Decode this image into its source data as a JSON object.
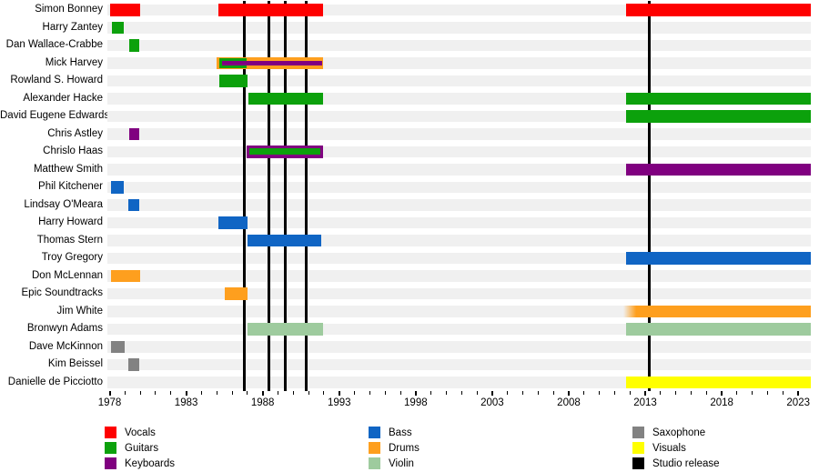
{
  "chart_data": {
    "type": "timeline",
    "description": "Band member timeline (gantt-style) with studio release markers",
    "axis": {
      "start_year": 1977.85,
      "end_year": 2023.82,
      "major_ticks": [
        1978,
        1983,
        1988,
        1993,
        1998,
        2003,
        2008,
        2013,
        2018,
        2023
      ],
      "minor_tick_step": 1,
      "minor_tick_first": 1978,
      "minor_tick_last": 2023,
      "grid": "row-stripes"
    },
    "rows": [
      {
        "name": "Simon Bonney",
        "bars": [
          {
            "role": "vocals",
            "from": 1978.0,
            "to": 1980.0
          },
          {
            "role": "vocals",
            "from": 1985.08,
            "to": 1991.95
          },
          {
            "role": "vocals",
            "from": 2011.75,
            "to": 2023.8
          }
        ]
      },
      {
        "name": "Harry Zantey",
        "bars": [
          {
            "role": "guitars",
            "from": 1978.13,
            "to": 1978.92
          }
        ]
      },
      {
        "name": "Dan Wallace-Crabbe",
        "bars": [
          {
            "role": "guitars",
            "from": 1979.26,
            "to": 1979.95
          }
        ]
      },
      {
        "name": "Mick Harvey",
        "bars": [
          {
            "role": "drums",
            "from": 1985.0,
            "to": 1991.95,
            "h": 13.5
          },
          {
            "role": "guitars",
            "from": 1985.15,
            "to": 1986.95,
            "h": 11
          },
          {
            "role": "keyboards",
            "from": 1985.35,
            "to": 1991.9,
            "h": 4.5
          }
        ]
      },
      {
        "name": "Rowland S. Howard",
        "bars": [
          {
            "role": "guitars",
            "from": 1985.15,
            "to": 1986.98
          }
        ]
      },
      {
        "name": "Alexander Hacke",
        "bars": [
          {
            "role": "guitars",
            "from": 1987.05,
            "to": 1991.95
          },
          {
            "role": "guitars",
            "from": 2011.75,
            "to": 2023.8
          }
        ]
      },
      {
        "name": "David Eugene Edwards",
        "bars": [
          {
            "role": "guitars",
            "from": 2011.75,
            "to": 2023.8
          }
        ]
      },
      {
        "name": "Chris Astley",
        "bars": [
          {
            "role": "keyboards",
            "from": 1979.26,
            "to": 1979.95
          }
        ]
      },
      {
        "name": "Chrislo Haas",
        "bars": [
          {
            "role": "keyboards",
            "from": 1986.95,
            "to": 1991.95,
            "h": 13.5
          },
          {
            "role": "guitars",
            "from": 1987.1,
            "to": 1991.78,
            "h": 7
          }
        ]
      },
      {
        "name": "Matthew Smith",
        "bars": [
          {
            "role": "keyboards",
            "from": 2011.75,
            "to": 2023.8
          }
        ]
      },
      {
        "name": "Phil Kitchener",
        "bars": [
          {
            "role": "bass",
            "from": 1978.1,
            "to": 1978.92
          }
        ]
      },
      {
        "name": "Lindsay O'Meara",
        "bars": [
          {
            "role": "bass",
            "from": 1979.2,
            "to": 1979.95
          }
        ]
      },
      {
        "name": "Harry Howard",
        "bars": [
          {
            "role": "bass",
            "from": 1985.1,
            "to": 1987.0
          }
        ]
      },
      {
        "name": "Thomas Stern",
        "bars": [
          {
            "role": "bass",
            "from": 1987.0,
            "to": 1991.85
          }
        ]
      },
      {
        "name": "Troy Gregory",
        "bars": [
          {
            "role": "bass",
            "from": 2011.75,
            "to": 2023.8
          }
        ]
      },
      {
        "name": "Don McLennan",
        "bars": [
          {
            "role": "drums",
            "from": 1978.1,
            "to": 1979.98
          }
        ]
      },
      {
        "name": "Epic Soundtracks",
        "bars": [
          {
            "role": "drums",
            "from": 1985.5,
            "to": 1987.0
          }
        ]
      },
      {
        "name": "Jim White",
        "bars": [
          {
            "role": "drums",
            "from": 2011.55,
            "to": 2023.8,
            "fade_left": true
          }
        ]
      },
      {
        "name": "Bronwyn Adams",
        "bars": [
          {
            "role": "violin",
            "from": 1986.98,
            "to": 1991.95
          },
          {
            "role": "violin",
            "from": 2011.75,
            "to": 2023.8
          }
        ]
      },
      {
        "name": "Dave McKinnon",
        "bars": [
          {
            "role": "saxophone",
            "from": 1978.1,
            "to": 1979.0
          }
        ]
      },
      {
        "name": "Kim Beissel",
        "bars": [
          {
            "role": "saxophone",
            "from": 1979.2,
            "to": 1979.95
          }
        ]
      },
      {
        "name": "Danielle de Picciotto",
        "bars": [
          {
            "role": "visuals",
            "from": 2011.72,
            "to": 2023.8
          }
        ]
      }
    ],
    "studio_releases": [
      1986.79,
      1988.38,
      1989.47,
      1990.82,
      2013.24
    ],
    "legend": {
      "position": "bottom",
      "columns": [
        [
          {
            "label": "Vocals",
            "role": "vocals"
          },
          {
            "label": "Guitars",
            "role": "guitars"
          },
          {
            "label": "Keyboards",
            "role": "keyboards"
          }
        ],
        [
          {
            "label": "Bass",
            "role": "bass"
          },
          {
            "label": "Drums",
            "role": "drums"
          },
          {
            "label": "Violin",
            "role": "violin"
          }
        ],
        [
          {
            "label": "Saxophone",
            "role": "saxophone"
          },
          {
            "label": "Visuals",
            "role": "visuals"
          },
          {
            "label": "Studio release",
            "role": "release"
          }
        ]
      ]
    },
    "colors": {
      "vocals": "#fe0000",
      "guitars": "#0ca10c",
      "keyboards": "#800080",
      "bass": "#1065c4",
      "drums": "#fe9f1e",
      "violin": "#9ecb9e",
      "saxophone": "#828282",
      "visuals": "#ffff00",
      "release": "#000000",
      "row_stripe": "#f0f0f0",
      "background": "#ffffff"
    }
  }
}
